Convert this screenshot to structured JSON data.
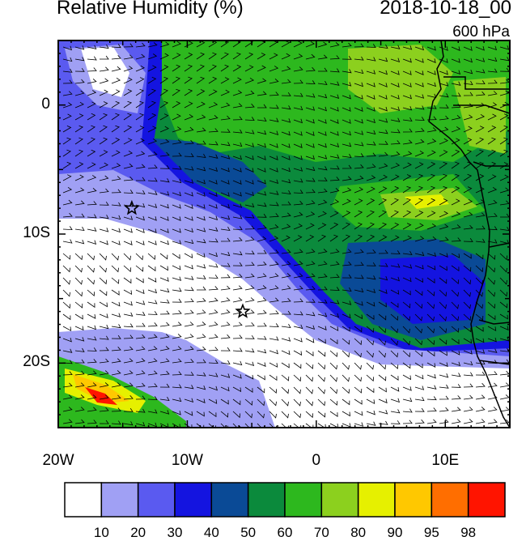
{
  "header": {
    "title": "Relative Humidity (%)",
    "date": "2018-10-18_00",
    "level": "600 hPa"
  },
  "axes": {
    "y_labels": [
      {
        "text": "0",
        "lat": 0
      },
      {
        "text": "10S",
        "lat": -10
      },
      {
        "text": "20S",
        "lat": -20
      }
    ],
    "x_labels": [
      {
        "text": "20W",
        "lon": -20
      },
      {
        "text": "10W",
        "lon": -10
      },
      {
        "text": "0",
        "lon": 0
      },
      {
        "text": "10E",
        "lon": 10
      }
    ],
    "lon_range": [
      -20,
      15
    ],
    "lat_range": [
      -25,
      5
    ]
  },
  "markers": [
    {
      "name": "star",
      "lon": -14.3,
      "lat": -8.0
    },
    {
      "name": "star",
      "lon": -5.7,
      "lat": -16.0
    }
  ],
  "colorbar": {
    "colors": [
      "#ffffff",
      "#a0a0f4",
      "#5a5af0",
      "#1414e0",
      "#0a4a96",
      "#0b8a3c",
      "#2db81e",
      "#8cd01e",
      "#e6f000",
      "#ffc800",
      "#ff6e00",
      "#ff1400"
    ],
    "labels": [
      "10",
      "20",
      "30",
      "40",
      "50",
      "60",
      "70",
      "80",
      "90",
      "95",
      "98"
    ]
  }
}
